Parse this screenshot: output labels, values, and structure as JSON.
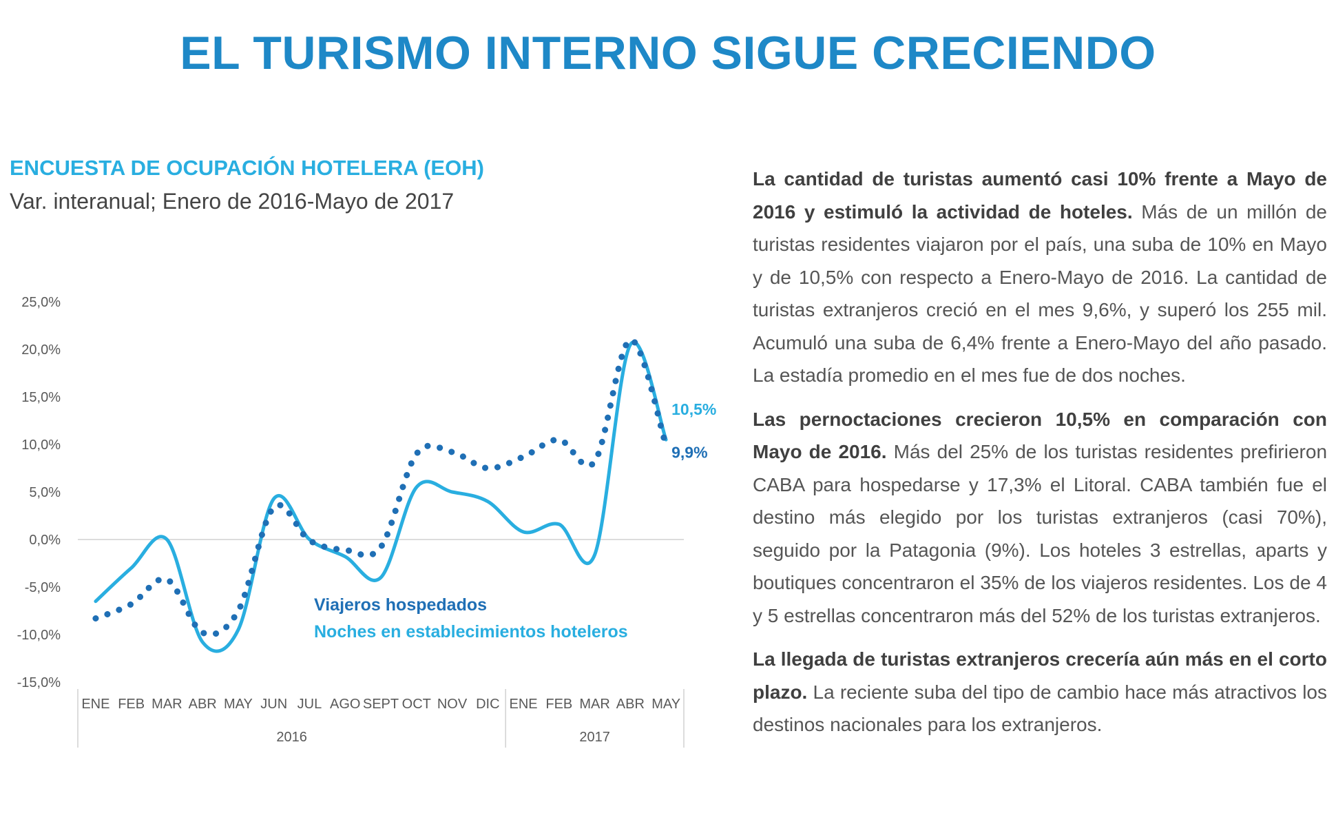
{
  "title": "EL TURISMO INTERNO SIGUE CRECIENDO",
  "chart": {
    "title": "ENCUESTA DE OCUPACIÓN HOTELERA (EOH)",
    "subtitle": "Var. interanual; Enero de 2016-Mayo de 2017"
  },
  "chart_data": {
    "type": "line",
    "title": "ENCUESTA DE OCUPACIÓN HOTELERA (EOH)",
    "subtitle": "Var. interanual; Enero de 2016-Mayo de 2017",
    "categories": [
      "ENE",
      "FEB",
      "MAR",
      "ABR",
      "MAY",
      "JUN",
      "JUL",
      "AGO",
      "SEPT",
      "OCT",
      "NOV",
      "DIC",
      "ENE",
      "FEB",
      "MAR",
      "ABR",
      "MAY"
    ],
    "groups": [
      {
        "label": "2016",
        "count": 12
      },
      {
        "label": "2017",
        "count": 5
      }
    ],
    "series": [
      {
        "name": "Viajeros hospedados",
        "style": "dotted",
        "color": "#1f6fb5",
        "values": [
          -8.3,
          -6.8,
          -4.2,
          -9.8,
          -7.5,
          3.4,
          -0.1,
          -1.1,
          -0.8,
          9.0,
          9.2,
          7.5,
          8.7,
          10.5,
          8.2,
          21.0,
          9.9
        ],
        "end_label": "9,9%"
      },
      {
        "name": "Noches en establecimientos hoteleros",
        "style": "solid",
        "color": "#29aee0",
        "values": [
          -6.5,
          -3.0,
          0.0,
          -10.8,
          -9.5,
          4.3,
          0.0,
          -1.8,
          -4.0,
          5.5,
          5.0,
          4.0,
          0.8,
          1.6,
          -1.6,
          20.5,
          10.5
        ],
        "end_label": "10,5%"
      }
    ],
    "yticks": [
      "25,0%",
      "20,0%",
      "15,0%",
      "10,0%",
      "5,0%",
      "0,0%",
      "-5,0%",
      "-10,0%",
      "-15,0%"
    ],
    "ylim": [
      -15,
      25
    ],
    "grid": false,
    "legend": "inside, lower-middle"
  },
  "text": {
    "p1_bold": "La cantidad de turistas aumentó casi 10% frente a Mayo de 2016 y estimuló la actividad de hoteles.",
    "p1_body": "Más de un millón de turistas residentes viajaron por el país, una suba de 10% en Mayo y de 10,5% con respecto a Enero-Mayo de 2016. La cantidad de turistas extranjeros creció en el mes 9,6%, y superó los 255 mil. Acumuló una suba de 6,4% frente a Enero-Mayo del año pasado. La estadía promedio en el mes fue de dos noches.",
    "p2_bold": "Las pernoctaciones crecieron 10,5% en comparación con Mayo de 2016.",
    "p2_body": "Más del 25% de los turistas residentes prefirieron CABA para hospedarse y 17,3% el Litoral. CABA también fue el destino más elegido por los turistas extranjeros (casi 70%), seguido por la Patagonia (9%). Los hoteles 3 estrellas, aparts y boutiques concentraron el 35% de los viajeros residentes. Los de 4 y 5 estrellas concentraron más del 52% de los turistas extranjeros.",
    "p3_bold": "La llegada de turistas extranjeros crecería aún más en el corto plazo.",
    "p3_body": "La reciente suba del tipo de cambio hace más atractivos los destinos nacionales para los extranjeros."
  },
  "colors": {
    "title": "#1e88c7",
    "accent": "#29aee0",
    "dark_series": "#1f6fb5",
    "text": "#555555"
  }
}
